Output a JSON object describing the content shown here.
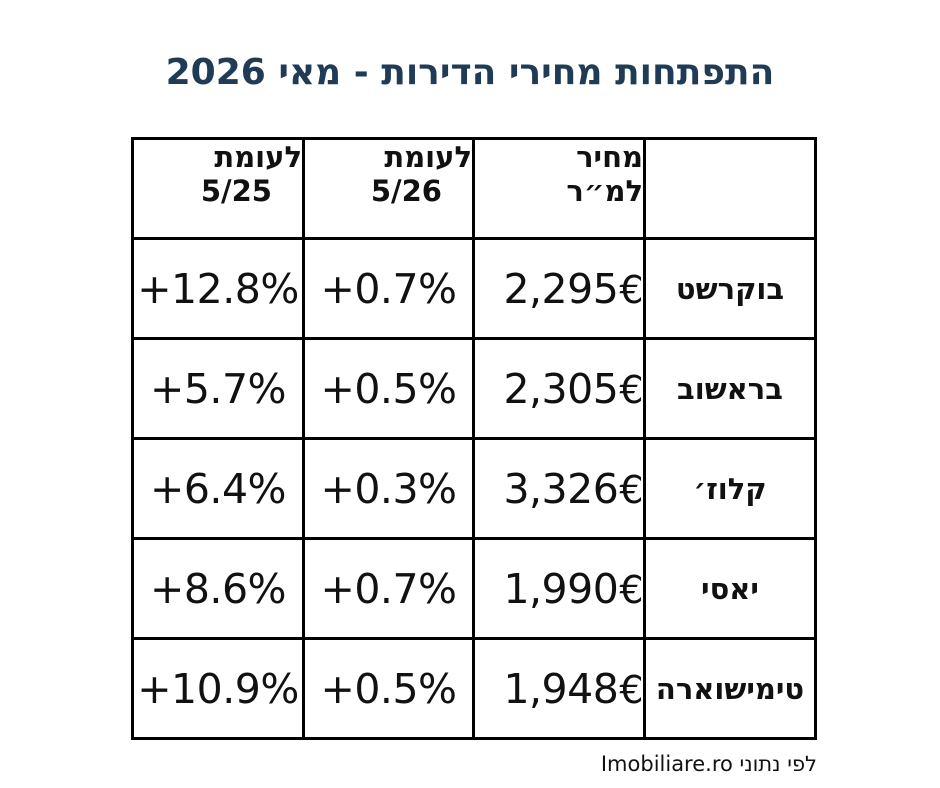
{
  "title": "התפתחות מחירי הדירות - מאי 2026",
  "table": {
    "headers": {
      "city": "",
      "price_line1": "מחיר",
      "price_line2": "למ״ר",
      "monthly_line1": "לעומת",
      "monthly_line2": "5/26",
      "yearly_line1": "לעומת",
      "yearly_line2": "5/25"
    },
    "currency_symbol": "€",
    "rows": [
      {
        "city": "בוקרשט",
        "price": "2,295",
        "vs_month": "+0.7%",
        "vs_year": "+12.8%"
      },
      {
        "city": "בראשוב",
        "price": "2,305",
        "vs_month": "+0.5%",
        "vs_year": "+5.7%"
      },
      {
        "city": "קלוז׳",
        "price": "3,326",
        "vs_month": "+0.3%",
        "vs_year": "+6.4%"
      },
      {
        "city": "יאסי",
        "price": "1,990",
        "vs_month": "+0.7%",
        "vs_year": "+8.6%"
      },
      {
        "city": "טימישוארה",
        "price": "1,948",
        "vs_month": "+0.5%",
        "vs_year": "+10.9%"
      }
    ]
  },
  "source": "לפי נתוני Imobiliare.ro",
  "colors": {
    "title": "#1f3b55",
    "text": "#111111",
    "border": "#000000",
    "background": "#ffffff"
  }
}
